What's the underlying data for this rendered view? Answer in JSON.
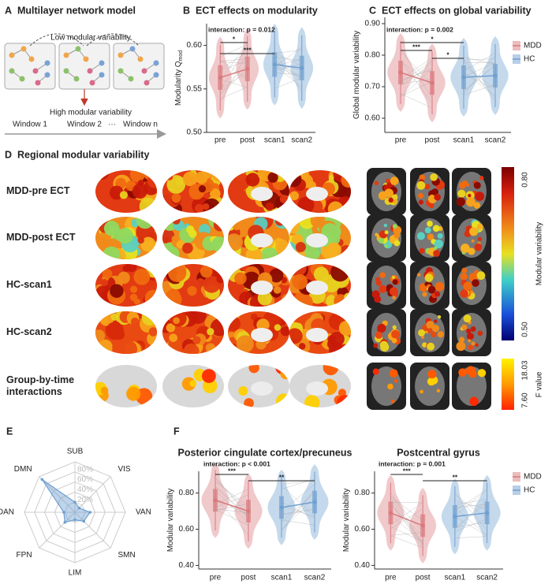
{
  "panel_a": {
    "label": "A",
    "title": "Multilayer network model",
    "annotations": [
      "Low  modular variability",
      "High  modular  variability"
    ],
    "windows": [
      "Window 1",
      "Window 2",
      "···",
      "Window n"
    ]
  },
  "panel_d": {
    "label": "D",
    "title": "Regional modular variability",
    "rows": [
      [
        "MDD-pre ECT"
      ],
      [
        "MDD-post ECT"
      ],
      [
        "HC-scan1"
      ],
      [
        "HC-scan2"
      ],
      [
        "Group-by-time",
        "interactions"
      ]
    ],
    "colorbars": [
      {
        "label": "Modular variability",
        "ticks": [
          "0.80",
          "0.50"
        ]
      },
      {
        "label": "F value",
        "ticks": [
          "18.03",
          "7.60"
        ]
      }
    ]
  },
  "panel_f_label": "F",
  "chart_data": [
    {
      "panel": "B",
      "type": "violin",
      "title": "ECT effects on modularity",
      "y_label": "Modularity Q",
      "y_label_sub": "mod",
      "categories": [
        "pre",
        "post",
        "scan1",
        "scan2"
      ],
      "series": [
        {
          "name": "MDD",
          "color": "#d9797c",
          "values": [
            0.563,
            0.573,
            null,
            null
          ]
        },
        {
          "name": "HC",
          "color": "#6f9fd0",
          "values": [
            null,
            null,
            0.578,
            0.574
          ]
        }
      ],
      "ylim": [
        0.5,
        0.625
      ],
      "yticks": [
        {
          "value": 0.5,
          "label": "0.50"
        },
        {
          "value": 0.55,
          "label": "0.55"
        },
        {
          "value": 0.6,
          "label": "0.60"
        }
      ],
      "annotations": [
        "interaction: p = 0.012",
        "*",
        "***"
      ],
      "legend": false
    },
    {
      "panel": "C",
      "type": "violin",
      "title": "ECT effects on global variability",
      "y_label": "Global modular variability",
      "categories": [
        "pre",
        "post",
        "scan1",
        "scan2"
      ],
      "series": [
        {
          "name": "MDD",
          "color": "#d9797c",
          "values": [
            0.745,
            0.712,
            null,
            null
          ]
        },
        {
          "name": "HC",
          "color": "#6f9fd0",
          "values": [
            null,
            null,
            0.73,
            0.735
          ]
        }
      ],
      "ylim": [
        0.555,
        0.92
      ],
      "yticks": [
        {
          "value": 0.6,
          "label": "0.60"
        },
        {
          "value": 0.7,
          "label": "0.70"
        },
        {
          "value": 0.8,
          "label": "0.80"
        },
        {
          "value": 0.9,
          "label": "0.90"
        }
      ],
      "annotations": [
        "interaction: p = 0.002",
        "***",
        "*",
        "*"
      ],
      "legend": true
    },
    {
      "panel": "E",
      "type": "radar",
      "categories": [
        "SUB",
        "VIS",
        "VAN",
        "SMN",
        "LIM",
        "FPN",
        "DAN",
        "DMN"
      ],
      "values": [
        20,
        12,
        30,
        25,
        15,
        28,
        22,
        92
      ],
      "color": "#6f9fd0",
      "rlim": [
        0,
        100
      ],
      "rticks": [
        {
          "value": 20,
          "label": "20%"
        },
        {
          "value": 40,
          "label": "40%"
        },
        {
          "value": 60,
          "label": "60%"
        },
        {
          "value": 80,
          "label": "80%"
        }
      ]
    },
    {
      "type": "violin",
      "title": "Posterior cingulate cortex/precuneus",
      "y_label": "Modular variability",
      "categories": [
        "pre",
        "post",
        "scan1",
        "scan2"
      ],
      "series": [
        {
          "name": "MDD",
          "color": "#d9797c",
          "values": [
            0.76,
            0.7,
            null,
            null
          ]
        },
        {
          "name": "HC",
          "color": "#6f9fd0",
          "values": [
            null,
            null,
            0.72,
            0.75
          ]
        }
      ],
      "ylim": [
        0.38,
        0.92
      ],
      "yticks": [
        {
          "value": 0.4,
          "label": "0.40"
        },
        {
          "value": 0.6,
          "label": "0.60"
        },
        {
          "value": 0.8,
          "label": "0.80"
        }
      ],
      "annotations": [
        "interaction: p < 0.001",
        "***",
        "**"
      ],
      "legend": false
    },
    {
      "type": "violin",
      "title": "Postcentral gyrus",
      "y_label": "Modular variability",
      "categories": [
        "pre",
        "post",
        "scan1",
        "scan2"
      ],
      "series": [
        {
          "name": "MDD",
          "color": "#d9797c",
          "values": [
            0.69,
            0.62,
            null,
            null
          ]
        },
        {
          "name": "HC",
          "color": "#6f9fd0",
          "values": [
            null,
            null,
            0.67,
            0.69
          ]
        }
      ],
      "ylim": [
        0.38,
        0.92
      ],
      "yticks": [
        {
          "value": 0.4,
          "label": "0.40"
        },
        {
          "value": 0.6,
          "label": "0.60"
        },
        {
          "value": 0.8,
          "label": "0.80"
        }
      ],
      "annotations": [
        "interaction: p = 0.001",
        "***",
        "**"
      ],
      "legend": true
    }
  ]
}
